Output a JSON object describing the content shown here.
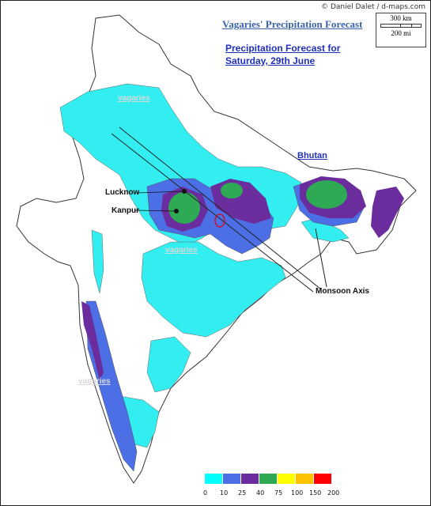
{
  "credit": "© Daniel Dalet / d-maps.com",
  "title": "Vagaries' Precipitation Forecast",
  "subtitle_line1": "Precipitation Forecast for",
  "subtitle_line2": "Saturday, 29th June",
  "scale": {
    "km": "300 km",
    "mi": "200 mi"
  },
  "labels": {
    "lucknow": "Lucknow",
    "kanpur": "Kanpur",
    "bhutan": "Bhutan",
    "monsoon_axis": "Monsoon Axis"
  },
  "watermark": "vagaries",
  "legend": {
    "ticks": [
      "0",
      "10",
      "25",
      "40",
      "75",
      "100",
      "150",
      "200"
    ],
    "colors": [
      "#00ffff",
      "#4d6fe6",
      "#6b2d9e",
      "#2eaa55",
      "#ffff00",
      "#ffc200",
      "#ff0000"
    ]
  },
  "colors": {
    "light": "#33eef0",
    "moderate": "#4d6fe6",
    "heavy": "#6b2d9e",
    "very_heavy": "#2eaa55"
  }
}
